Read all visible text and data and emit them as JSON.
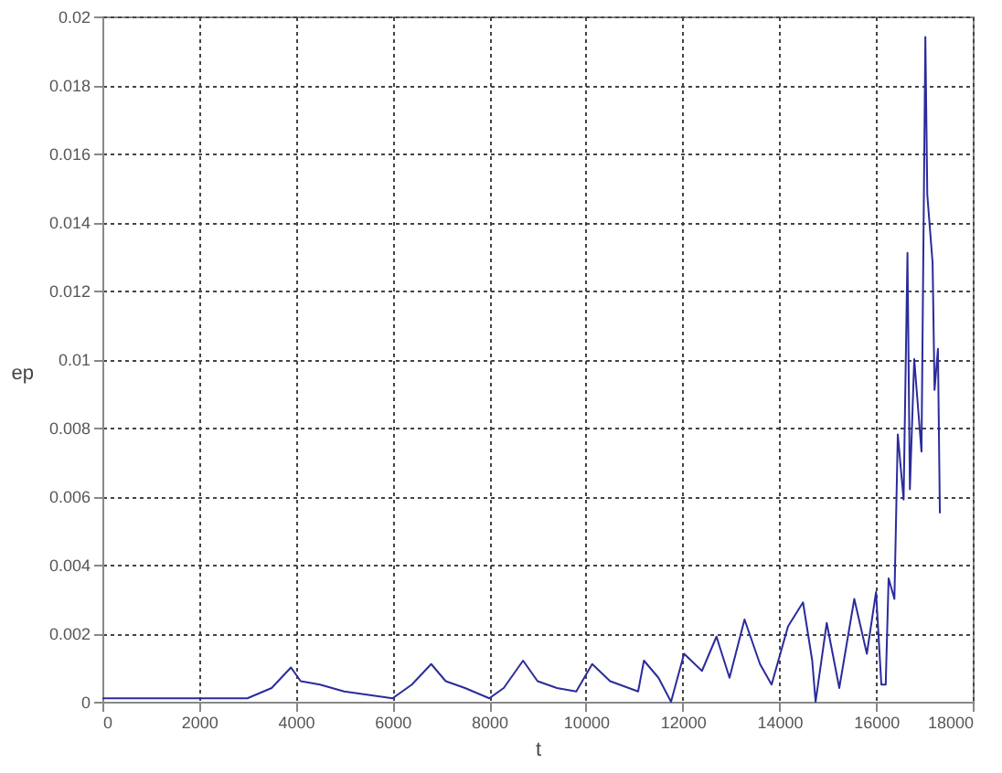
{
  "chart_data": {
    "type": "line",
    "xlabel": "t",
    "ylabel": "ep",
    "xlim": [
      0,
      18000
    ],
    "ylim": [
      0,
      0.02
    ],
    "xticks": [
      0,
      2000,
      4000,
      6000,
      8000,
      10000,
      12000,
      14000,
      16000,
      18000
    ],
    "yticks": [
      0,
      0.002,
      0.004,
      0.006,
      0.008,
      0.01,
      0.012,
      0.014,
      0.016,
      0.018,
      0.02
    ],
    "grid": true,
    "line_style": "solid",
    "marker": "none",
    "series": [
      {
        "color": "#2b2b9c",
        "x": [
          0,
          500,
          1000,
          2000,
          2600,
          3000,
          3500,
          3900,
          4100,
          4500,
          5000,
          5500,
          6000,
          6400,
          6800,
          7100,
          7500,
          8000,
          8300,
          8700,
          9000,
          9400,
          9800,
          10130,
          10500,
          11080,
          11200,
          11500,
          11760,
          12030,
          12400,
          12700,
          12970,
          13280,
          13600,
          13840,
          14180,
          14490,
          14680,
          14750,
          14980,
          15240,
          15550,
          15810,
          16000,
          16110,
          16200,
          16260,
          16380,
          16450,
          16570,
          16650,
          16700,
          16790,
          16940,
          17020,
          17060,
          17170,
          17210,
          17280,
          17320
        ],
        "values": [
          0.0001,
          0.0001,
          0.0001,
          0.0001,
          0.0001,
          0.0001,
          0.0004,
          0.001,
          0.0006,
          0.0005,
          0.0003,
          0.0002,
          0.0001,
          0.0005,
          0.0011,
          0.0006,
          0.0004,
          0.0001,
          0.0004,
          0.0012,
          0.0006,
          0.0004,
          0.0003,
          0.0011,
          0.0006,
          0.0003,
          0.0012,
          0.0007,
          0.0,
          0.0014,
          0.0009,
          0.0019,
          0.0007,
          0.0024,
          0.0011,
          0.0005,
          0.0022,
          0.0029,
          0.0012,
          0.0,
          0.0023,
          0.0004,
          0.003,
          0.0014,
          0.0032,
          0.0005,
          0.0005,
          0.0036,
          0.003,
          0.0078,
          0.0059,
          0.0131,
          0.0062,
          0.01,
          0.0073,
          0.0194,
          0.0148,
          0.0128,
          0.0091,
          0.0103,
          0.0055
        ]
      }
    ]
  }
}
